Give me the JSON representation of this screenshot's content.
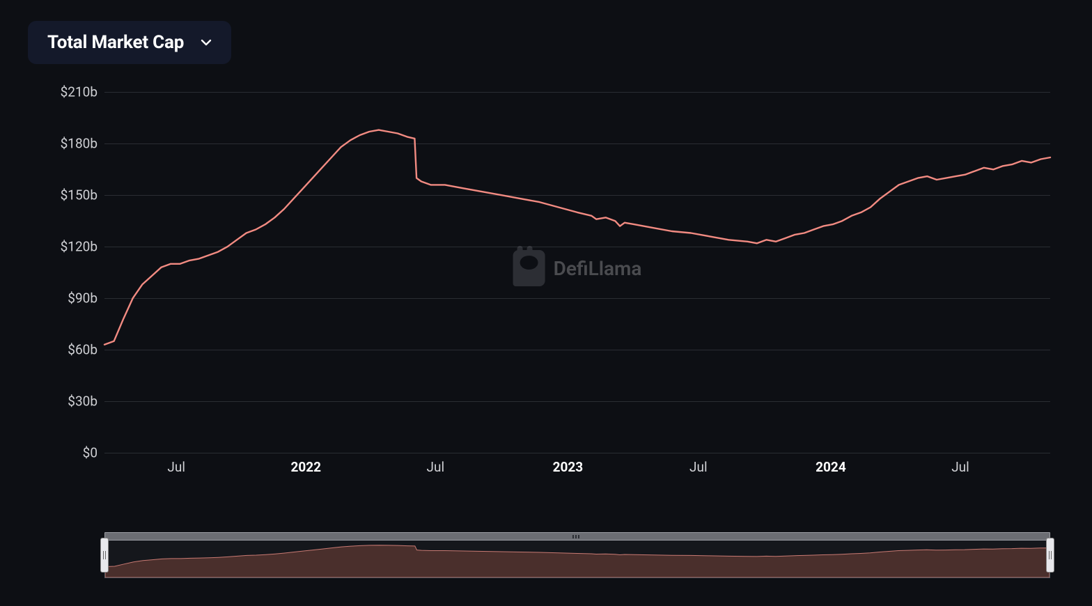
{
  "dropdown": {
    "label": "Total Market Cap",
    "background_color": "#14192a",
    "text_color": "#ffffff"
  },
  "watermark": {
    "text": "DefiLlama"
  },
  "chart": {
    "type": "line",
    "background_color": "#0d0f14",
    "grid_color": "#2a2d33",
    "line_color": "#f28b82",
    "line_width": 2.4,
    "y_axis": {
      "min": 0,
      "max": 215,
      "ticks": [
        0,
        30,
        60,
        90,
        120,
        150,
        180,
        210
      ],
      "tick_labels": [
        "$0",
        "$30b",
        "$60b",
        "$90b",
        "$120b",
        "$150b",
        "$180b",
        "$210b"
      ],
      "label_color": "#cfd0d4",
      "label_fontsize": 19
    },
    "x_axis": {
      "ticks": [
        {
          "t": 0.076,
          "label": "Jul",
          "bold": false
        },
        {
          "t": 0.213,
          "label": "2022",
          "bold": true
        },
        {
          "t": 0.35,
          "label": "Jul",
          "bold": false
        },
        {
          "t": 0.49,
          "label": "2023",
          "bold": true
        },
        {
          "t": 0.628,
          "label": "Jul",
          "bold": false
        },
        {
          "t": 0.768,
          "label": "2024",
          "bold": true
        },
        {
          "t": 0.905,
          "label": "Jul",
          "bold": false
        }
      ],
      "label_color": "#cfd0d4",
      "label_fontsize": 19
    },
    "series": [
      {
        "t": 0.0,
        "v": 63
      },
      {
        "t": 0.01,
        "v": 65
      },
      {
        "t": 0.02,
        "v": 78
      },
      {
        "t": 0.03,
        "v": 90
      },
      {
        "t": 0.04,
        "v": 98
      },
      {
        "t": 0.05,
        "v": 103
      },
      {
        "t": 0.06,
        "v": 108
      },
      {
        "t": 0.07,
        "v": 110
      },
      {
        "t": 0.08,
        "v": 110
      },
      {
        "t": 0.09,
        "v": 112
      },
      {
        "t": 0.1,
        "v": 113
      },
      {
        "t": 0.11,
        "v": 115
      },
      {
        "t": 0.12,
        "v": 117
      },
      {
        "t": 0.13,
        "v": 120
      },
      {
        "t": 0.14,
        "v": 124
      },
      {
        "t": 0.15,
        "v": 128
      },
      {
        "t": 0.16,
        "v": 130
      },
      {
        "t": 0.17,
        "v": 133
      },
      {
        "t": 0.18,
        "v": 137
      },
      {
        "t": 0.19,
        "v": 142
      },
      {
        "t": 0.2,
        "v": 148
      },
      {
        "t": 0.21,
        "v": 154
      },
      {
        "t": 0.22,
        "v": 160
      },
      {
        "t": 0.23,
        "v": 166
      },
      {
        "t": 0.24,
        "v": 172
      },
      {
        "t": 0.25,
        "v": 178
      },
      {
        "t": 0.26,
        "v": 182
      },
      {
        "t": 0.27,
        "v": 185
      },
      {
        "t": 0.28,
        "v": 187
      },
      {
        "t": 0.29,
        "v": 188
      },
      {
        "t": 0.3,
        "v": 187
      },
      {
        "t": 0.31,
        "v": 186
      },
      {
        "t": 0.32,
        "v": 184
      },
      {
        "t": 0.328,
        "v": 183
      },
      {
        "t": 0.33,
        "v": 160
      },
      {
        "t": 0.335,
        "v": 158
      },
      {
        "t": 0.345,
        "v": 156
      },
      {
        "t": 0.36,
        "v": 156
      },
      {
        "t": 0.38,
        "v": 154
      },
      {
        "t": 0.4,
        "v": 152
      },
      {
        "t": 0.42,
        "v": 150
      },
      {
        "t": 0.44,
        "v": 148
      },
      {
        "t": 0.46,
        "v": 146
      },
      {
        "t": 0.48,
        "v": 143
      },
      {
        "t": 0.5,
        "v": 140
      },
      {
        "t": 0.515,
        "v": 138
      },
      {
        "t": 0.52,
        "v": 136
      },
      {
        "t": 0.53,
        "v": 137
      },
      {
        "t": 0.54,
        "v": 135
      },
      {
        "t": 0.545,
        "v": 132
      },
      {
        "t": 0.55,
        "v": 134
      },
      {
        "t": 0.56,
        "v": 133
      },
      {
        "t": 0.58,
        "v": 131
      },
      {
        "t": 0.6,
        "v": 129
      },
      {
        "t": 0.62,
        "v": 128
      },
      {
        "t": 0.64,
        "v": 126
      },
      {
        "t": 0.66,
        "v": 124
      },
      {
        "t": 0.68,
        "v": 123
      },
      {
        "t": 0.69,
        "v": 122
      },
      {
        "t": 0.7,
        "v": 124
      },
      {
        "t": 0.71,
        "v": 123
      },
      {
        "t": 0.72,
        "v": 125
      },
      {
        "t": 0.73,
        "v": 127
      },
      {
        "t": 0.74,
        "v": 128
      },
      {
        "t": 0.75,
        "v": 130
      },
      {
        "t": 0.76,
        "v": 132
      },
      {
        "t": 0.77,
        "v": 133
      },
      {
        "t": 0.78,
        "v": 135
      },
      {
        "t": 0.79,
        "v": 138
      },
      {
        "t": 0.8,
        "v": 140
      },
      {
        "t": 0.81,
        "v": 143
      },
      {
        "t": 0.82,
        "v": 148
      },
      {
        "t": 0.83,
        "v": 152
      },
      {
        "t": 0.84,
        "v": 156
      },
      {
        "t": 0.85,
        "v": 158
      },
      {
        "t": 0.86,
        "v": 160
      },
      {
        "t": 0.87,
        "v": 161
      },
      {
        "t": 0.88,
        "v": 159
      },
      {
        "t": 0.89,
        "v": 160
      },
      {
        "t": 0.9,
        "v": 161
      },
      {
        "t": 0.91,
        "v": 162
      },
      {
        "t": 0.92,
        "v": 164
      },
      {
        "t": 0.93,
        "v": 166
      },
      {
        "t": 0.94,
        "v": 165
      },
      {
        "t": 0.95,
        "v": 167
      },
      {
        "t": 0.96,
        "v": 168
      },
      {
        "t": 0.97,
        "v": 170
      },
      {
        "t": 0.98,
        "v": 169
      },
      {
        "t": 0.99,
        "v": 171
      },
      {
        "t": 1.0,
        "v": 172
      }
    ]
  },
  "range_selector": {
    "track_color": "#6b6d73",
    "mini_fill_color": "#4a2f2c",
    "mini_line_color": "#c97a73",
    "handle_color": "#e8e8ec"
  }
}
